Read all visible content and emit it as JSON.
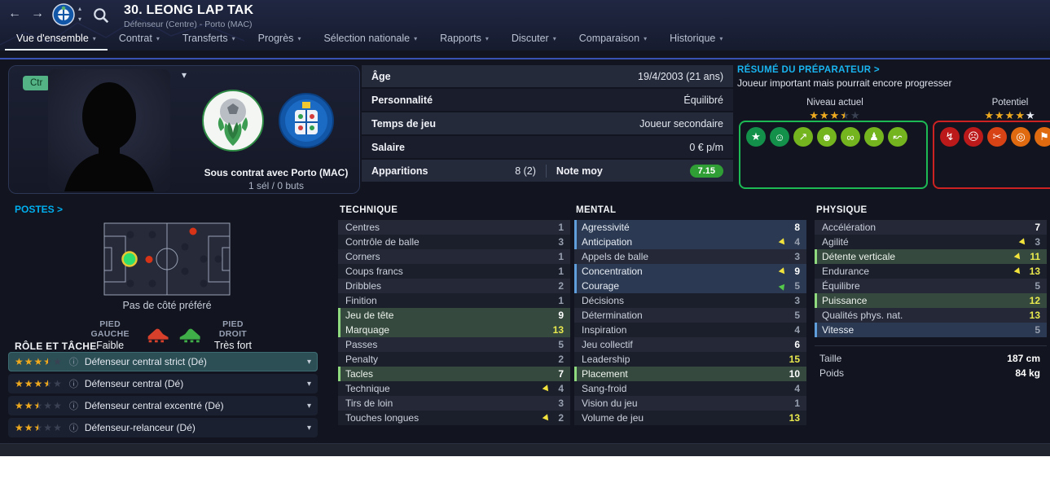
{
  "header": {
    "title": "30. LEONG LAP TAK",
    "subtitle": "Défenseur (Centre) - Porto (MAC)",
    "tabs": [
      {
        "label": "Vue d'ensemble",
        "active": true
      },
      {
        "label": "Contrat",
        "active": false
      },
      {
        "label": "Transferts",
        "active": false
      },
      {
        "label": "Progrès",
        "active": false
      },
      {
        "label": "Sélection nationale",
        "active": false
      },
      {
        "label": "Rapports",
        "active": false
      },
      {
        "label": "Discuter",
        "active": false
      },
      {
        "label": "Comparaison",
        "active": false
      },
      {
        "label": "Historique",
        "active": false
      }
    ]
  },
  "profile": {
    "position_badge": "Ctr",
    "contract_line": "Sous contrat avec Porto (MAC)",
    "caps_line": "1 sél / 0 buts"
  },
  "info_rows": [
    {
      "label": "Âge",
      "value": "19/4/2003 (21 ans)"
    },
    {
      "label": "Personnalité",
      "value": "Équilibré"
    },
    {
      "label": "Temps de jeu",
      "value": "Joueur secondaire"
    },
    {
      "label": "Salaire",
      "value": "0 € p/m"
    }
  ],
  "appearances": {
    "label": "Apparitions",
    "value": "8 (2)",
    "rating_label": "Note moy",
    "rating_value": "7.15",
    "rating_color": "#2f9e35"
  },
  "scout": {
    "title": "RÉSUMÉ DU PRÉPARATEUR >",
    "summary": "Joueur important mais pourrait encore progresser",
    "current_label": "Niveau actuel",
    "current_stars": [
      "full",
      "full",
      "full",
      "half",
      "empty"
    ],
    "potential_label": "Potentiel",
    "potential_stars": [
      "full",
      "full",
      "full",
      "full",
      "white"
    ],
    "pros_icons": [
      {
        "name": "key-star-icon",
        "glyph": "★",
        "bg": "#13914b"
      },
      {
        "name": "happy-boot-icon",
        "glyph": "☺",
        "bg": "#13914b"
      },
      {
        "name": "rising-arrow-icon",
        "glyph": "↗",
        "bg": "#74b41e"
      },
      {
        "name": "head-icon",
        "glyph": "☻",
        "bg": "#74b41e"
      },
      {
        "name": "chain-icon",
        "glyph": "∞",
        "bg": "#74b41e"
      },
      {
        "name": "body-icon",
        "glyph": "♟",
        "bg": "#74b41e"
      },
      {
        "name": "boot-swing-icon",
        "glyph": "↜",
        "bg": "#74b41e"
      }
    ],
    "cons_icons": [
      {
        "name": "cannon-icon",
        "glyph": "↯",
        "bg": "#bc1a1a"
      },
      {
        "name": "sad-boot-icon",
        "glyph": "☹",
        "bg": "#bc1a1a"
      },
      {
        "name": "broken-chain-icon",
        "glyph": "✂",
        "bg": "#d84315"
      },
      {
        "name": "target-icon",
        "glyph": "◎",
        "bg": "#e06a10"
      },
      {
        "name": "foot-icon",
        "glyph": "⚑",
        "bg": "#e06a10"
      },
      {
        "name": "double-arrow-icon",
        "glyph": "»",
        "bg": "#e06a10"
      },
      {
        "name": "speed-icon",
        "glyph": "✦",
        "bg": "#e06a10"
      }
    ]
  },
  "positions": {
    "title": "POSTES >",
    "preferred_side": "Pas de côté préféré",
    "left_foot_label": "PIED GAUCHE",
    "left_foot_value": "Faible",
    "right_foot_label": "PIED DROIT",
    "right_foot_value": "Très fort"
  },
  "roles": {
    "title": "RÔLE ET TÂCHE",
    "items": [
      {
        "stars": [
          "full",
          "full",
          "full",
          "half",
          "empty"
        ],
        "label": "Défenseur central strict (Dé)",
        "selected": true
      },
      {
        "stars": [
          "full",
          "full",
          "full",
          "half",
          "empty"
        ],
        "label": "Défenseur central (Dé)",
        "selected": false
      },
      {
        "stars": [
          "full",
          "full",
          "half",
          "empty",
          "empty"
        ],
        "label": "Défenseur central excentré (Dé)",
        "selected": false
      },
      {
        "stars": [
          "full",
          "full",
          "half",
          "empty",
          "empty"
        ],
        "label": "Défenseur-relanceur (Dé)",
        "selected": false
      }
    ]
  },
  "attributes": {
    "technique": {
      "title": "TECHNIQUE",
      "rows": [
        {
          "name": "Centres",
          "value": 1
        },
        {
          "name": "Contrôle de balle",
          "value": 3
        },
        {
          "name": "Corners",
          "value": 1
        },
        {
          "name": "Coups francs",
          "value": 1
        },
        {
          "name": "Dribbles",
          "value": 2
        },
        {
          "name": "Finition",
          "value": 1
        },
        {
          "name": "Jeu de tête",
          "value": 9,
          "hl": "green"
        },
        {
          "name": "Marquage",
          "value": 13,
          "hl": "green"
        },
        {
          "name": "Passes",
          "value": 5
        },
        {
          "name": "Penalty",
          "value": 2
        },
        {
          "name": "Tacles",
          "value": 7,
          "hl": "green"
        },
        {
          "name": "Technique",
          "value": 4,
          "trend": "down"
        },
        {
          "name": "Tirs de loin",
          "value": 3
        },
        {
          "name": "Touches longues",
          "value": 2,
          "trend": "down"
        }
      ]
    },
    "mental": {
      "title": "MENTAL",
      "rows": [
        {
          "name": "Agressivité",
          "value": 8,
          "hl": "blue"
        },
        {
          "name": "Anticipation",
          "value": 4,
          "hl": "blue",
          "trend": "down"
        },
        {
          "name": "Appels de balle",
          "value": 3
        },
        {
          "name": "Concentration",
          "value": 9,
          "hl": "blue",
          "trend": "down"
        },
        {
          "name": "Courage",
          "value": 5,
          "hl": "blue",
          "trend": "up"
        },
        {
          "name": "Décisions",
          "value": 3
        },
        {
          "name": "Détermination",
          "value": 5
        },
        {
          "name": "Inspiration",
          "value": 4
        },
        {
          "name": "Jeu collectif",
          "value": 6
        },
        {
          "name": "Leadership",
          "value": 15
        },
        {
          "name": "Placement",
          "value": 10,
          "hl": "green"
        },
        {
          "name": "Sang-froid",
          "value": 4
        },
        {
          "name": "Vision du jeu",
          "value": 1
        },
        {
          "name": "Volume de jeu",
          "value": 13
        }
      ]
    },
    "physique": {
      "title": "PHYSIQUE",
      "rows": [
        {
          "name": "Accélération",
          "value": 7
        },
        {
          "name": "Agilité",
          "value": 3,
          "trend": "down"
        },
        {
          "name": "Détente verticale",
          "value": 11,
          "hl": "green",
          "trend": "down"
        },
        {
          "name": "Endurance",
          "value": 13,
          "trend": "down"
        },
        {
          "name": "Équilibre",
          "value": 5
        },
        {
          "name": "Puissance",
          "value": 12,
          "hl": "green"
        },
        {
          "name": "Qualités phys. nat.",
          "value": 13
        },
        {
          "name": "Vitesse",
          "value": 5,
          "hl": "blue"
        }
      ]
    }
  },
  "body_info": {
    "height_label": "Taille",
    "height_value": "187 cm",
    "weight_label": "Poids",
    "weight_value": "84 kg"
  },
  "colors": {
    "accent_cyan": "#19b4f0",
    "star_gold": "#efa91c",
    "star_white": "#e9edf5",
    "attr_low": "#98a0b0",
    "attr_mid": "#ffffff",
    "attr_high": "#e9e94e",
    "pros_border": "#1db954",
    "cons_border": "#cc2222"
  }
}
